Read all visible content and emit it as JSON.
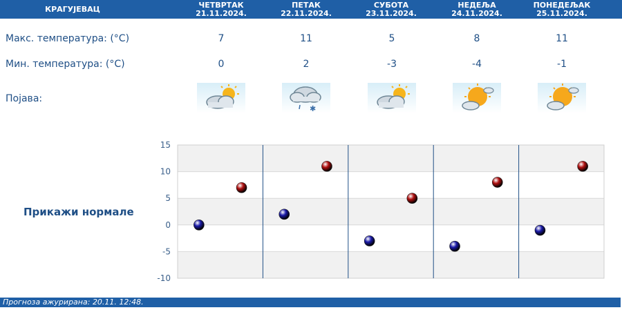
{
  "header": {
    "city": "КРАГУЈЕВАЦ",
    "days": [
      {
        "name": "ЧЕТВРТАК",
        "date": "21.11.2024."
      },
      {
        "name": "ПЕТАК",
        "date": "22.11.2024."
      },
      {
        "name": "СУБОТА",
        "date": "23.11.2024."
      },
      {
        "name": "НЕДЕЉА",
        "date": "24.11.2024."
      },
      {
        "name": "ПОНЕДЕЉАК",
        "date": "25.11.2024."
      }
    ]
  },
  "rows": {
    "max_label": "Макс. температура: (°C)",
    "min_label": "Мин. температура: (°C)",
    "phenomenon_label": "Појава:",
    "max_values": [
      "7",
      "11",
      "5",
      "8",
      "11"
    ],
    "min_values": [
      "0",
      "2",
      "-3",
      "-4",
      "-1"
    ],
    "icons": [
      "partly-cloudy-icon",
      "cloud-rain-snow-icon",
      "partly-cloudy-icon",
      "mostly-sunny-icon",
      "mostly-sunny-icon"
    ]
  },
  "toggle": {
    "label": "Прикажи нормале"
  },
  "chart_data": {
    "type": "scatter",
    "categories": [
      "ЧЕТВРТАК",
      "ПЕТАК",
      "СУБОТА",
      "НЕДЕЉА",
      "ПОНЕДЕЉАК"
    ],
    "series": [
      {
        "values": [
          0,
          2,
          -3,
          -4,
          -1
        ],
        "color": "#1a1aa8"
      },
      {
        "values": [
          7,
          11,
          5,
          8,
          11
        ],
        "color": "#b01010"
      }
    ],
    "yticks": [
      "15",
      "10",
      "5",
      "0",
      "-5",
      "-10"
    ],
    "ylim": [
      -10,
      15
    ],
    "grid": true
  },
  "footer": {
    "label": "Прогноза ажурирана:",
    "value": "20.11. 12:48."
  },
  "colors": {
    "bar": "#1f5fa6",
    "text": "#1f4f86"
  }
}
